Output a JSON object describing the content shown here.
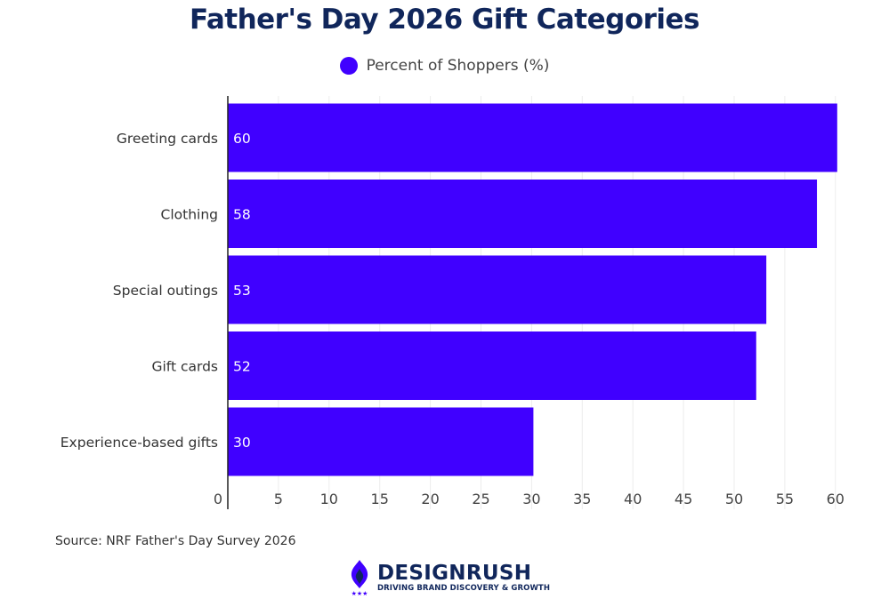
{
  "chart_data": {
    "type": "bar",
    "orientation": "horizontal",
    "title": "Father's Day 2026 Gift Categories",
    "categories": [
      "Greeting cards",
      "Clothing",
      "Special outings",
      "Gift cards",
      "Experience-based gifts"
    ],
    "series": [
      {
        "name": "Percent of Shoppers (%)",
        "values": [
          60,
          58,
          53,
          52,
          30
        ],
        "color": "#4000ff"
      }
    ],
    "xlim": [
      0,
      60
    ],
    "xticks": [
      0,
      5,
      10,
      15,
      20,
      25,
      30,
      35,
      40,
      45,
      50,
      55,
      60
    ],
    "grid": true,
    "legend_position": "top-center",
    "data_labels": "inside-start"
  },
  "footer": {
    "source": "Source: NRF Father's Day Survey 2026",
    "brand_name": "DESIGNRUSH",
    "brand_tagline": "DRIVING BRAND DISCOVERY & GROWTH",
    "brand_color": "#10265b",
    "logo_icon": "designrush-flame-icon"
  }
}
